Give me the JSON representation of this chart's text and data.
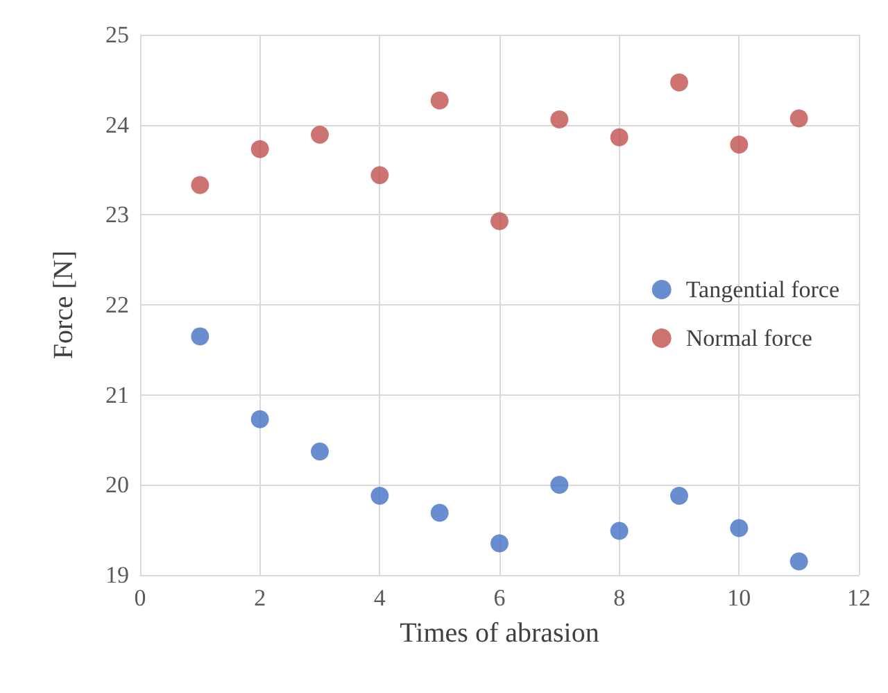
{
  "chart_data": {
    "type": "scatter",
    "xlabel": "Times of abrasion",
    "ylabel": "Force [N]",
    "x": [
      1,
      2,
      3,
      4,
      5,
      6,
      7,
      8,
      9,
      10,
      11
    ],
    "series": [
      {
        "name": "Tangential force",
        "color": "#4472c4",
        "values": [
          21.65,
          20.73,
          20.37,
          19.88,
          19.69,
          19.35,
          20.0,
          19.49,
          19.88,
          19.52,
          19.15
        ]
      },
      {
        "name": "Normal force",
        "color": "#c0504d",
        "values": [
          23.33,
          23.73,
          23.89,
          23.44,
          24.27,
          22.93,
          24.06,
          23.86,
          24.47,
          23.78,
          24.07
        ]
      }
    ],
    "xlim": [
      0,
      12
    ],
    "xticks": [
      0,
      2,
      4,
      6,
      8,
      10,
      12
    ],
    "ylim": [
      19,
      25
    ],
    "yticks": [
      19,
      20,
      21,
      22,
      23,
      24,
      25
    ],
    "grid": true,
    "legend": "right",
    "marker": "circle"
  }
}
